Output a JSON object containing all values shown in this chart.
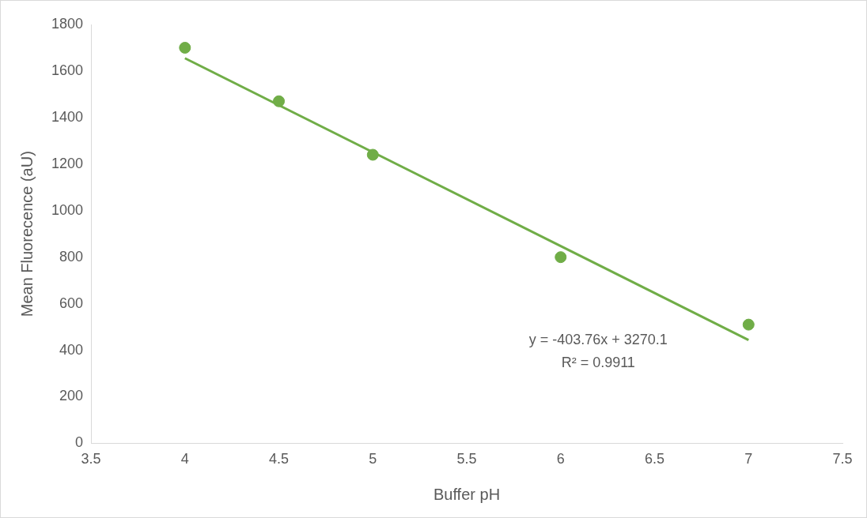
{
  "chart_data": {
    "type": "scatter",
    "xlabel": "Buffer pH",
    "ylabel": "Mean Fluorecence (aU)",
    "x": [
      4,
      4.5,
      5,
      6,
      7
    ],
    "series": [
      {
        "type": "scatter",
        "color": "#70ad47",
        "values": [
          1700,
          1470,
          1240,
          800,
          510
        ],
        "marker": "circle"
      },
      {
        "type": "line",
        "color": "#70ad47",
        "x": [
          4,
          7
        ],
        "values": [
          1655,
          444
        ],
        "marker": "none"
      }
    ],
    "xlim": [
      3.5,
      7.5
    ],
    "xticks": [
      3.5,
      4,
      4.5,
      5,
      5.5,
      6,
      6.5,
      7,
      7.5
    ],
    "ylim": [
      0,
      1800
    ],
    "yticks": [
      0,
      200,
      400,
      600,
      800,
      1000,
      1200,
      1400,
      1600,
      1800
    ],
    "grid": false,
    "legend": false,
    "annotations": [
      "y = -403.76x + 3270.1",
      "R² = 0.9911"
    ]
  }
}
